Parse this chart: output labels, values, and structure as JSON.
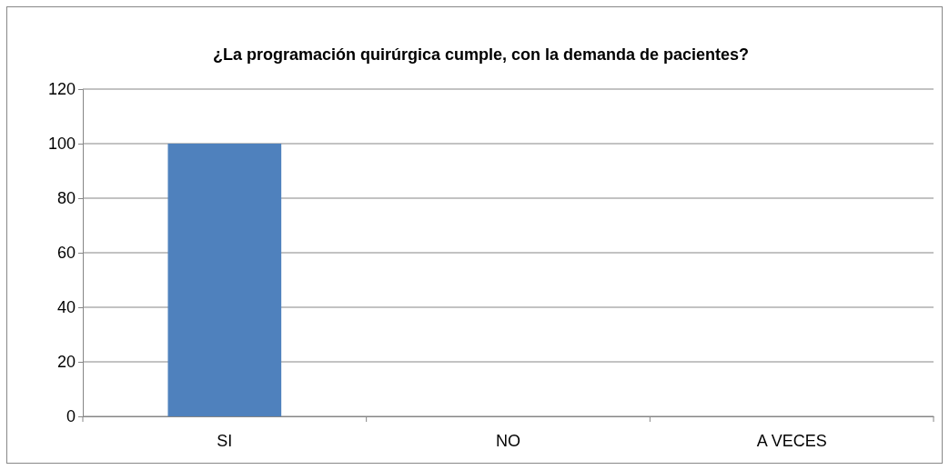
{
  "chart_data": {
    "type": "bar",
    "title": "¿La programación quirúrgica cumple, con la demanda de pacientes?",
    "categories": [
      "SI",
      "NO",
      "A VECES"
    ],
    "values": [
      100,
      0,
      0
    ],
    "color": "#4f81bd",
    "ylim": [
      0,
      120
    ],
    "yticks": [
      0,
      20,
      40,
      60,
      80,
      100,
      120
    ],
    "grid": "y"
  }
}
